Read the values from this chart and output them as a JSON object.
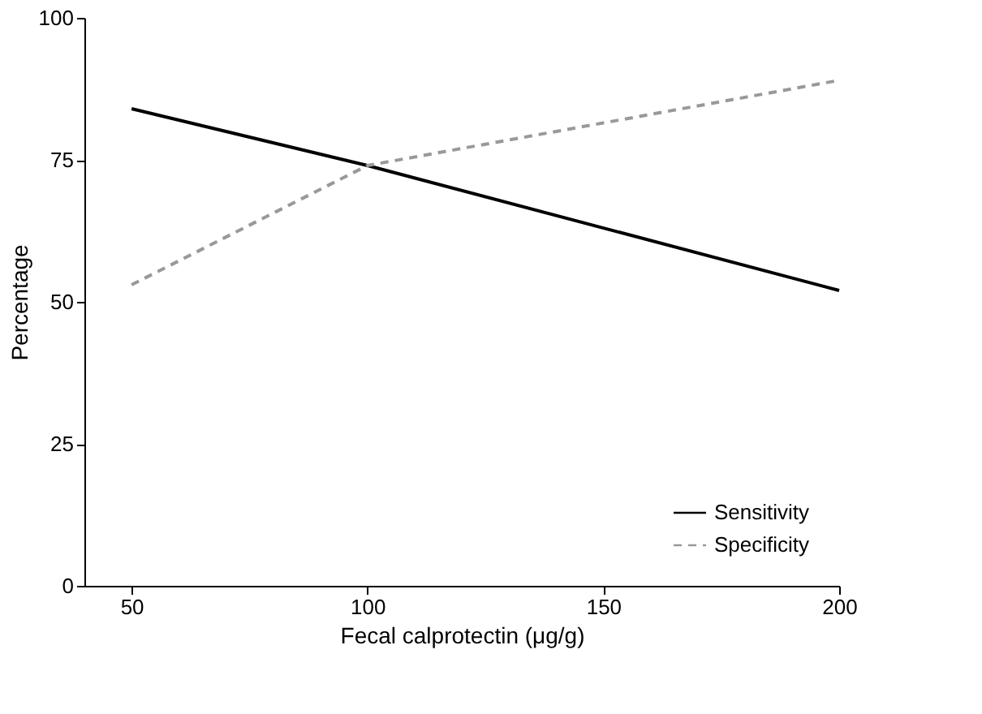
{
  "chart_data": {
    "type": "line",
    "xlabel": "Fecal calprotectin (μg/g)",
    "ylabel": "Percentage",
    "x": [
      50,
      100,
      200
    ],
    "series": [
      {
        "name": "Sensitivity",
        "color": "#000000",
        "line_style": "solid",
        "values": [
          84,
          74,
          52
        ]
      },
      {
        "name": "Specificity",
        "color": "#999999",
        "line_style": "dashed",
        "values": [
          53,
          74,
          89
        ]
      }
    ],
    "xlim": [
      40,
      200
    ],
    "xticks": [
      50,
      100,
      150,
      200
    ],
    "ylim": [
      0,
      100
    ],
    "yticks": [
      0,
      25,
      50,
      75,
      100
    ],
    "grid": false,
    "legend": "bottom right",
    "marker": "none"
  }
}
